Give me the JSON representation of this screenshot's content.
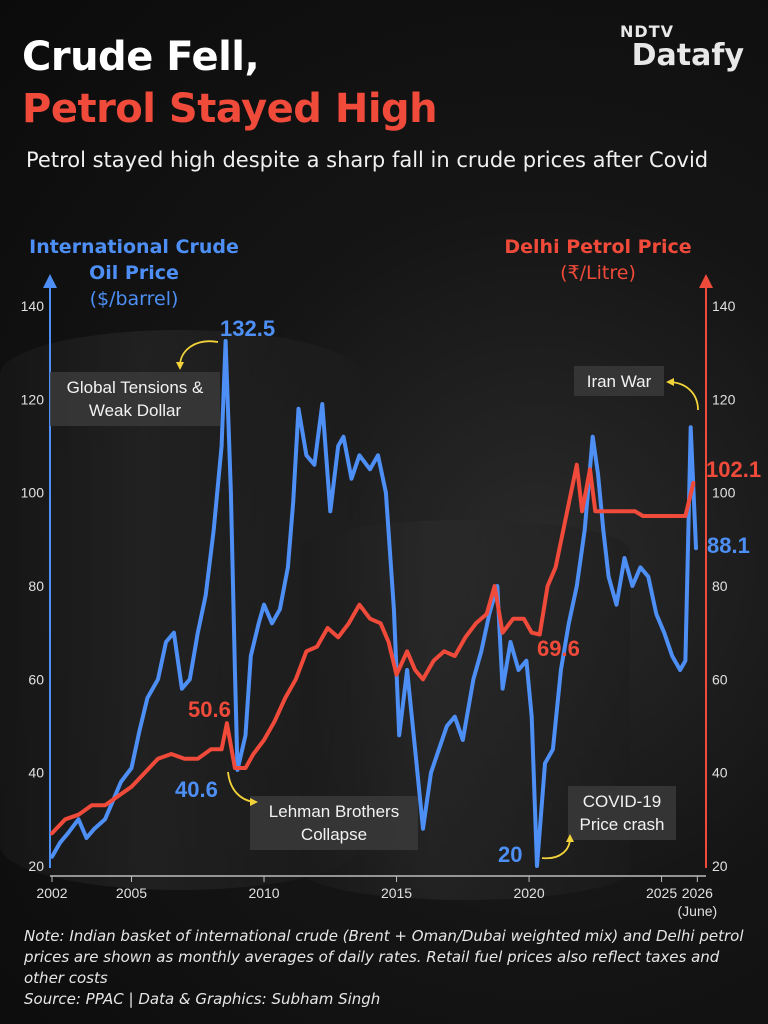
{
  "header": {
    "title_line1": "Crude Fell,",
    "title_line2": "Petrol Stayed High",
    "subtitle": "Petrol stayed high despite a sharp fall in crude prices after Covid",
    "logo_top": "NDTV",
    "logo_bottom": "Datafy"
  },
  "colors": {
    "crude": "#4d8ff5",
    "petrol": "#f04a3a",
    "annotation_arrow": "#f2d33a"
  },
  "chart_data": {
    "type": "line",
    "title": "Crude Fell, Petrol Stayed High",
    "subtitle": "Petrol stayed high despite a sharp fall in crude prices after Covid",
    "left_axis": {
      "title": "International Crude Oil Price",
      "unit": "($/barrel)",
      "range": [
        20,
        140
      ],
      "ticks": [
        "140",
        "120",
        "100",
        "80",
        "60",
        "40",
        "20"
      ]
    },
    "right_axis": {
      "title": "Delhi Petrol Price",
      "unit": "(₹/Litre)",
      "range": [
        20,
        140
      ],
      "ticks": [
        "140",
        "120",
        "100",
        "80",
        "60",
        "40",
        "20"
      ]
    },
    "x_axis": {
      "range": [
        2002,
        2026.45
      ],
      "ticks": [
        "2002",
        "2005",
        "2010",
        "2015",
        "2020",
        "2025",
        "2026"
      ],
      "last_tick_note": "(June)"
    },
    "grid": false,
    "series": [
      {
        "name": "International Crude Oil Price",
        "axis": "left",
        "points": [
          [
            2002.0,
            22
          ],
          [
            2002.3,
            25
          ],
          [
            2002.6,
            27
          ],
          [
            2003.0,
            30
          ],
          [
            2003.3,
            26
          ],
          [
            2003.6,
            28
          ],
          [
            2004.0,
            30
          ],
          [
            2004.3,
            34
          ],
          [
            2004.6,
            38
          ],
          [
            2005.0,
            41
          ],
          [
            2005.3,
            49
          ],
          [
            2005.6,
            56
          ],
          [
            2006.0,
            60
          ],
          [
            2006.3,
            68
          ],
          [
            2006.6,
            70
          ],
          [
            2006.9,
            58
          ],
          [
            2007.2,
            60
          ],
          [
            2007.5,
            70
          ],
          [
            2007.8,
            78
          ],
          [
            2008.1,
            92
          ],
          [
            2008.4,
            110
          ],
          [
            2008.55,
            132.5
          ],
          [
            2008.75,
            100
          ],
          [
            2008.9,
            62
          ],
          [
            2009.0,
            40.6
          ],
          [
            2009.3,
            48
          ],
          [
            2009.5,
            65
          ],
          [
            2009.8,
            72
          ],
          [
            2010.0,
            76
          ],
          [
            2010.3,
            72
          ],
          [
            2010.6,
            75
          ],
          [
            2010.9,
            84
          ],
          [
            2011.1,
            98
          ],
          [
            2011.3,
            118
          ],
          [
            2011.6,
            108
          ],
          [
            2011.9,
            106
          ],
          [
            2012.2,
            119
          ],
          [
            2012.5,
            96
          ],
          [
            2012.8,
            110
          ],
          [
            2013.0,
            112
          ],
          [
            2013.3,
            103
          ],
          [
            2013.6,
            108
          ],
          [
            2014.0,
            105
          ],
          [
            2014.3,
            108
          ],
          [
            2014.6,
            100
          ],
          [
            2014.9,
            75
          ],
          [
            2015.1,
            48
          ],
          [
            2015.4,
            62
          ],
          [
            2015.7,
            45
          ],
          [
            2016.0,
            28
          ],
          [
            2016.3,
            40
          ],
          [
            2016.6,
            45
          ],
          [
            2016.9,
            50
          ],
          [
            2017.2,
            52
          ],
          [
            2017.5,
            47
          ],
          [
            2017.9,
            60
          ],
          [
            2018.2,
            66
          ],
          [
            2018.5,
            74
          ],
          [
            2018.8,
            80
          ],
          [
            2019.0,
            58
          ],
          [
            2019.3,
            68
          ],
          [
            2019.6,
            62
          ],
          [
            2019.9,
            64
          ],
          [
            2020.1,
            52
          ],
          [
            2020.3,
            20
          ],
          [
            2020.6,
            42
          ],
          [
            2020.9,
            45
          ],
          [
            2021.2,
            62
          ],
          [
            2021.5,
            72
          ],
          [
            2021.8,
            80
          ],
          [
            2022.1,
            92
          ],
          [
            2022.4,
            112
          ],
          [
            2022.6,
            104
          ],
          [
            2022.8,
            92
          ],
          [
            2023.0,
            82
          ],
          [
            2023.3,
            76
          ],
          [
            2023.6,
            86
          ],
          [
            2023.9,
            80
          ],
          [
            2024.2,
            84
          ],
          [
            2024.5,
            82
          ],
          [
            2024.8,
            74
          ],
          [
            2025.1,
            70
          ],
          [
            2025.4,
            65
          ],
          [
            2025.7,
            62
          ],
          [
            2025.9,
            64
          ],
          [
            2026.1,
            114
          ],
          [
            2026.3,
            88.1
          ]
        ]
      },
      {
        "name": "Delhi Petrol Price",
        "axis": "right",
        "points": [
          [
            2002.0,
            27
          ],
          [
            2002.5,
            30
          ],
          [
            2003.0,
            31
          ],
          [
            2003.5,
            33
          ],
          [
            2004.0,
            33
          ],
          [
            2004.5,
            35
          ],
          [
            2005.0,
            37
          ],
          [
            2005.5,
            40
          ],
          [
            2006.0,
            43
          ],
          [
            2006.5,
            44
          ],
          [
            2007.0,
            43
          ],
          [
            2007.5,
            43
          ],
          [
            2008.0,
            45
          ],
          [
            2008.4,
            45
          ],
          [
            2008.6,
            50.6
          ],
          [
            2008.9,
            41
          ],
          [
            2009.3,
            41
          ],
          [
            2009.6,
            44
          ],
          [
            2010.0,
            47
          ],
          [
            2010.4,
            51
          ],
          [
            2010.8,
            56
          ],
          [
            2011.2,
            60
          ],
          [
            2011.6,
            66
          ],
          [
            2012.0,
            67
          ],
          [
            2012.4,
            71
          ],
          [
            2012.8,
            69
          ],
          [
            2013.2,
            72
          ],
          [
            2013.6,
            76
          ],
          [
            2014.0,
            73
          ],
          [
            2014.4,
            72
          ],
          [
            2014.7,
            68
          ],
          [
            2015.0,
            61
          ],
          [
            2015.4,
            66
          ],
          [
            2015.7,
            62
          ],
          [
            2016.0,
            60
          ],
          [
            2016.4,
            64
          ],
          [
            2016.8,
            66
          ],
          [
            2017.2,
            65
          ],
          [
            2017.6,
            69
          ],
          [
            2018.0,
            72
          ],
          [
            2018.4,
            74
          ],
          [
            2018.7,
            80
          ],
          [
            2019.0,
            70
          ],
          [
            2019.4,
            73
          ],
          [
            2019.8,
            73
          ],
          [
            2020.1,
            70
          ],
          [
            2020.4,
            69.6
          ],
          [
            2020.7,
            80
          ],
          [
            2021.0,
            84
          ],
          [
            2021.4,
            95
          ],
          [
            2021.8,
            106
          ],
          [
            2022.0,
            96
          ],
          [
            2022.3,
            105
          ],
          [
            2022.5,
            96
          ],
          [
            2023.0,
            96
          ],
          [
            2023.5,
            96
          ],
          [
            2024.0,
            96
          ],
          [
            2024.3,
            95
          ],
          [
            2024.8,
            95
          ],
          [
            2025.4,
            95
          ],
          [
            2025.9,
            95
          ],
          [
            2026.2,
            102.1
          ]
        ]
      }
    ],
    "data_labels": [
      {
        "series": "International Crude Oil Price",
        "x": 2008.55,
        "text": "132.5"
      },
      {
        "series": "International Crude Oil Price",
        "x": 2009.0,
        "text": "40.6"
      },
      {
        "series": "International Crude Oil Price",
        "x": 2020.3,
        "text": "20"
      },
      {
        "series": "International Crude Oil Price",
        "x": 2026.3,
        "text": "88.1"
      },
      {
        "series": "Delhi Petrol Price",
        "x": 2008.6,
        "text": "50.6"
      },
      {
        "series": "Delhi Petrol Price",
        "x": 2020.4,
        "text": "69.6"
      },
      {
        "series": "Delhi Petrol Price",
        "x": 2026.2,
        "text": "102.1"
      }
    ],
    "annotations": [
      {
        "text_lines": [
          "Global Tensions &",
          "Weak Dollar"
        ],
        "x": 2008.55
      },
      {
        "text_lines": [
          "Lehman Brothers",
          "Collapse"
        ],
        "x": 2009.0
      },
      {
        "text_lines": [
          "COVID-19",
          "Price crash"
        ],
        "x": 2020.3
      },
      {
        "text_lines": [
          "Iran War"
        ],
        "x": 2026.1
      }
    ]
  },
  "note": "Note: Indian basket  of international crude (Brent + Oman/Dubai weighted mix) and Delhi petrol prices are shown as monthly averages of daily rates. Retail fuel prices also reflect taxes and other costs",
  "source": "Source: PPAC | Data & Graphics: Subham Singh"
}
